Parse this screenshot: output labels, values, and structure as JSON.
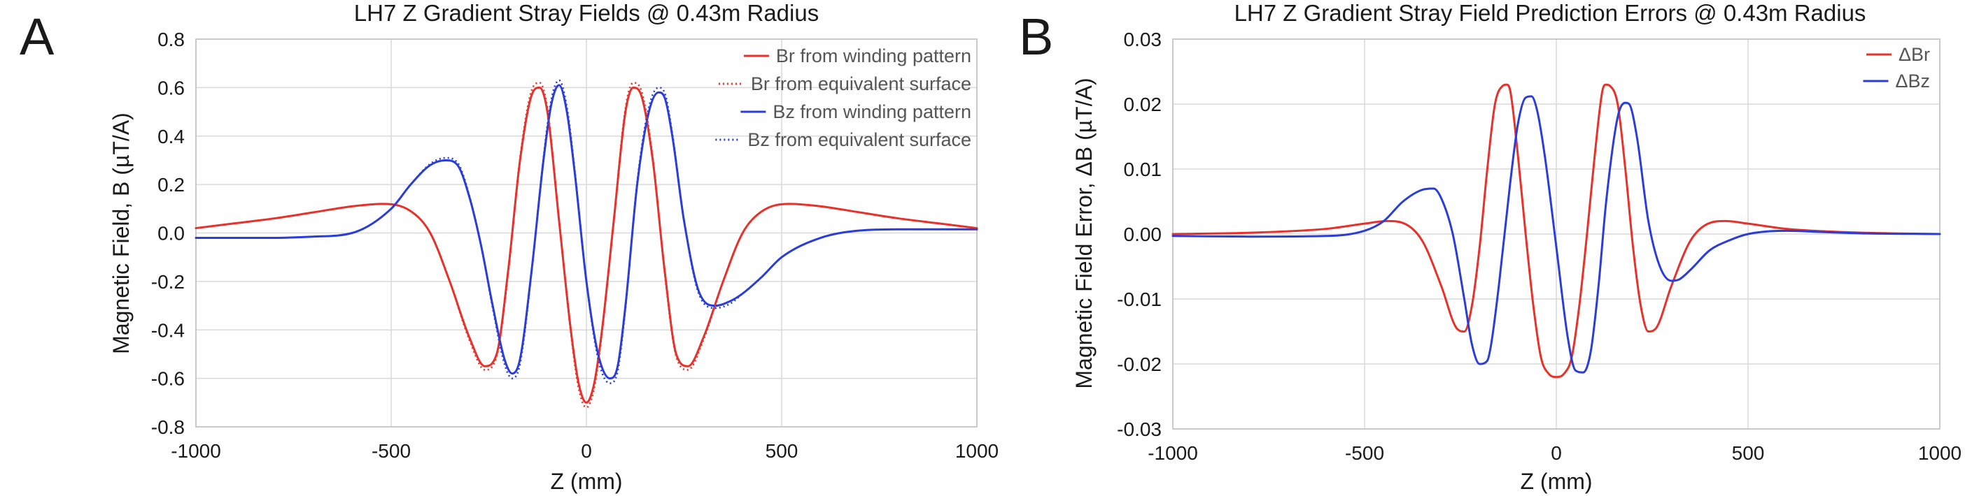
{
  "chart_data": [
    {
      "panel_label": "A",
      "type": "line",
      "title": "LH7 Z Gradient Stray Fields @ 0.43m Radius",
      "xlabel": "Z (mm)",
      "ylabel": "Magnetic Field, B (µT/A)",
      "xlim": [
        -1000,
        1000
      ],
      "ylim": [
        -0.8,
        0.8
      ],
      "xticks": [
        -1000,
        -500,
        0,
        500,
        1000
      ],
      "yticks": [
        0.8,
        0.6,
        0.4,
        0.2,
        0.0,
        -0.2,
        -0.4,
        -0.6,
        -0.8
      ],
      "ytick_labels": [
        "0.8",
        "0.6",
        "0.4",
        "0.2",
        "0.0",
        "-0.2",
        "-0.4",
        "-0.6",
        "-0.8"
      ],
      "xtick_labels": [
        "-1000",
        "-500",
        "0",
        "500",
        "1000"
      ],
      "grid": true,
      "legend_position": "top-right",
      "series": [
        {
          "name": "Br from winding pattern",
          "color": "#e8312a",
          "style": "solid",
          "x": [
            -1000,
            -900,
            -800,
            -700,
            -600,
            -520,
            -450,
            -400,
            -350,
            -300,
            -260,
            -230,
            -200,
            -170,
            -140,
            -120,
            -100,
            -70,
            -40,
            -20,
            0,
            20,
            40,
            70,
            100,
            120,
            140,
            170,
            200,
            230,
            260,
            300,
            350,
            400,
            450,
            520,
            600,
            700,
            800,
            900,
            1000
          ],
          "y": [
            0.02,
            0.04,
            0.06,
            0.085,
            0.11,
            0.12,
            0.09,
            0.0,
            -0.2,
            -0.43,
            -0.55,
            -0.5,
            -0.15,
            0.3,
            0.57,
            0.6,
            0.5,
            0.05,
            -0.4,
            -0.62,
            -0.7,
            -0.62,
            -0.4,
            0.05,
            0.5,
            0.6,
            0.57,
            0.3,
            -0.15,
            -0.5,
            -0.55,
            -0.43,
            -0.2,
            0.0,
            0.09,
            0.12,
            0.11,
            0.085,
            0.06,
            0.04,
            0.02
          ]
        },
        {
          "name": "Br from equivalent surface",
          "color": "#e8312a",
          "style": "dotted",
          "x": [
            -1000,
            -900,
            -800,
            -700,
            -600,
            -520,
            -450,
            -400,
            -350,
            -300,
            -260,
            -230,
            -200,
            -170,
            -140,
            -120,
            -100,
            -70,
            -40,
            -20,
            0,
            20,
            40,
            70,
            100,
            120,
            140,
            170,
            200,
            230,
            260,
            300,
            350,
            400,
            450,
            520,
            600,
            700,
            800,
            900,
            1000
          ],
          "y": [
            0.02,
            0.04,
            0.06,
            0.085,
            0.11,
            0.12,
            0.09,
            0.0,
            -0.2,
            -0.44,
            -0.565,
            -0.51,
            -0.16,
            0.31,
            0.59,
            0.62,
            0.515,
            0.05,
            -0.41,
            -0.64,
            -0.72,
            -0.64,
            -0.41,
            0.05,
            0.515,
            0.62,
            0.59,
            0.31,
            -0.16,
            -0.51,
            -0.565,
            -0.44,
            -0.2,
            0.0,
            0.09,
            0.12,
            0.11,
            0.085,
            0.06,
            0.04,
            0.02
          ]
        },
        {
          "name": "Bz from winding pattern",
          "color": "#2a3ddb",
          "style": "solid",
          "x": [
            -1000,
            -800,
            -700,
            -600,
            -500,
            -450,
            -400,
            -360,
            -330,
            -300,
            -270,
            -240,
            -210,
            -190,
            -170,
            -140,
            -110,
            -90,
            -70,
            -50,
            -30,
            0,
            30,
            60,
            80,
            100,
            130,
            160,
            185,
            200,
            220,
            250,
            290,
            330,
            370,
            400,
            450,
            500,
            600,
            700,
            800,
            1000
          ],
          "y": [
            -0.02,
            -0.02,
            -0.015,
            0.0,
            0.1,
            0.2,
            0.28,
            0.3,
            0.28,
            0.15,
            -0.05,
            -0.3,
            -0.52,
            -0.58,
            -0.52,
            -0.15,
            0.3,
            0.53,
            0.61,
            0.5,
            0.25,
            -0.2,
            -0.5,
            -0.6,
            -0.55,
            -0.3,
            0.2,
            0.5,
            0.58,
            0.56,
            0.4,
            0.05,
            -0.25,
            -0.3,
            -0.28,
            -0.25,
            -0.18,
            -0.1,
            -0.02,
            0.01,
            0.015,
            0.015
          ]
        },
        {
          "name": "Bz from equivalent surface",
          "color": "#2a3ddb",
          "style": "dotted",
          "x": [
            -1000,
            -800,
            -700,
            -600,
            -500,
            -450,
            -400,
            -360,
            -330,
            -300,
            -270,
            -240,
            -210,
            -190,
            -170,
            -140,
            -110,
            -90,
            -70,
            -50,
            -30,
            0,
            30,
            60,
            80,
            100,
            130,
            160,
            185,
            200,
            220,
            250,
            290,
            330,
            370,
            400,
            450,
            500,
            600,
            700,
            800,
            1000
          ],
          "y": [
            -0.02,
            -0.02,
            -0.015,
            0.0,
            0.1,
            0.2,
            0.285,
            0.31,
            0.29,
            0.155,
            -0.05,
            -0.31,
            -0.54,
            -0.6,
            -0.54,
            -0.155,
            0.31,
            0.55,
            0.63,
            0.52,
            0.26,
            -0.2,
            -0.52,
            -0.62,
            -0.57,
            -0.31,
            0.21,
            0.52,
            0.6,
            0.58,
            0.41,
            0.05,
            -0.26,
            -0.31,
            -0.29,
            -0.25,
            -0.18,
            -0.1,
            -0.02,
            0.01,
            0.015,
            0.015
          ]
        }
      ]
    },
    {
      "panel_label": "B",
      "type": "line",
      "title": "LH7 Z Gradient Stray Field Prediction Errors @ 0.43m Radius",
      "xlabel": "Z (mm)",
      "ylabel": "Magnetic Field Error, ΔB (µT/A)",
      "xlim": [
        -1000,
        1000
      ],
      "ylim": [
        -0.03,
        0.03
      ],
      "xticks": [
        -1000,
        -500,
        0,
        500,
        1000
      ],
      "yticks": [
        0.03,
        0.02,
        0.01,
        0.0,
        -0.01,
        -0.02,
        -0.03
      ],
      "ytick_labels": [
        "0.03",
        "0.02",
        "0.01",
        "0.00",
        "-0.01",
        "-0.02",
        "-0.03"
      ],
      "xtick_labels": [
        "-1000",
        "-500",
        "0",
        "500",
        "1000"
      ],
      "grid": true,
      "legend_position": "top-right",
      "series": [
        {
          "name": "ΔBr",
          "color": "#e8312a",
          "style": "solid",
          "x": [
            -1000,
            -800,
            -600,
            -500,
            -440,
            -400,
            -350,
            -300,
            -260,
            -240,
            -220,
            -200,
            -180,
            -160,
            -140,
            -130,
            -120,
            -100,
            -80,
            -60,
            -40,
            -20,
            0,
            20,
            40,
            60,
            80,
            100,
            120,
            130,
            140,
            160,
            180,
            200,
            220,
            240,
            260,
            300,
            350,
            400,
            440,
            500,
            600,
            800,
            1000
          ],
          "y": [
            0.0,
            0.0002,
            0.0008,
            0.0016,
            0.002,
            0.0017,
            -0.001,
            -0.008,
            -0.0145,
            -0.015,
            -0.011,
            -0.002,
            0.01,
            0.02,
            0.0228,
            0.023,
            0.022,
            0.012,
            0.0,
            -0.011,
            -0.019,
            -0.0215,
            -0.022,
            -0.0215,
            -0.019,
            -0.011,
            0.0,
            0.012,
            0.022,
            0.023,
            0.0228,
            0.02,
            0.01,
            -0.002,
            -0.011,
            -0.015,
            -0.0145,
            -0.008,
            -0.001,
            0.0017,
            0.002,
            0.0016,
            0.0008,
            0.0002,
            0.0
          ]
        },
        {
          "name": "ΔBz",
          "color": "#2a3ddb",
          "style": "solid",
          "x": [
            -1000,
            -800,
            -600,
            -500,
            -450,
            -400,
            -350,
            -320,
            -300,
            -270,
            -240,
            -220,
            -200,
            -180,
            -170,
            -150,
            -120,
            -100,
            -80,
            -65,
            -50,
            -30,
            0,
            30,
            50,
            70,
            90,
            110,
            130,
            160,
            180,
            190,
            210,
            240,
            270,
            300,
            320,
            350,
            400,
            450,
            500,
            600,
            700,
            800,
            1000
          ],
          "y": [
            -0.0003,
            -0.0004,
            -0.0003,
            0.0005,
            0.002,
            0.005,
            0.0068,
            0.007,
            0.0055,
            0.0,
            -0.01,
            -0.017,
            -0.02,
            -0.0195,
            -0.017,
            -0.008,
            0.008,
            0.017,
            0.021,
            0.0212,
            0.019,
            0.012,
            -0.002,
            -0.016,
            -0.021,
            -0.0213,
            -0.018,
            -0.008,
            0.005,
            0.018,
            0.0202,
            0.02,
            0.015,
            0.002,
            -0.005,
            -0.0072,
            -0.007,
            -0.0055,
            -0.0025,
            -0.001,
            0.0,
            0.0005,
            0.0003,
            0.0001,
            0.0
          ]
        }
      ]
    }
  ]
}
